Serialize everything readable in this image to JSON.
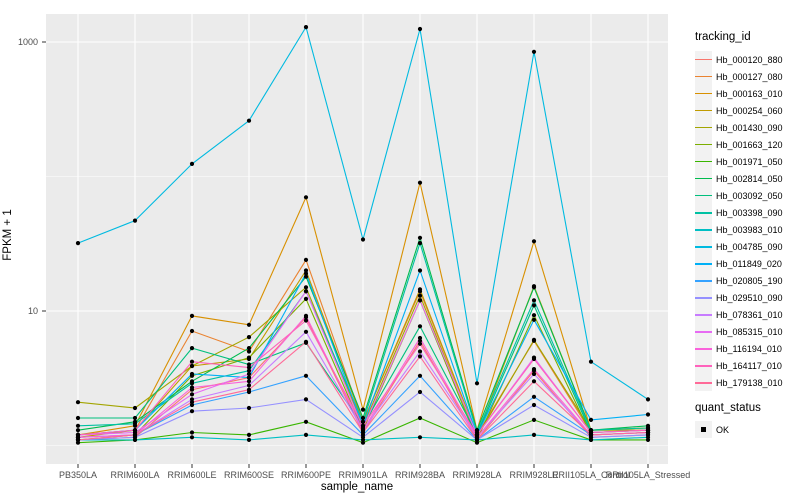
{
  "labels": {
    "y_title": "FPKM + 1",
    "x_title": "sample_name",
    "legend_title": "tracking_id",
    "quant_title": "quant_status",
    "quant_ok": "OK"
  },
  "chart_data": {
    "type": "line",
    "title": "",
    "xlabel": "sample_name",
    "ylabel": "FPKM + 1",
    "y_scale": "log10",
    "y_tick_labels": [
      "1000",
      "10"
    ],
    "y_tick_values": [
      1000,
      10
    ],
    "y_minor_gridlines": [
      100,
      1
    ],
    "ylim": [
      0.73,
      1615
    ],
    "grid": true,
    "legend_position": "right",
    "legend_title": "tracking_id",
    "point_legend": {
      "title": "quant_status",
      "label": "OK"
    },
    "panel_bg": "#EBEBEB",
    "grid_color": "#FFFFFF",
    "point_color": "#000000",
    "categories": [
      "PB350LA",
      "RRIM600LA",
      "RRIM600LE",
      "RRIM600SE",
      "RRIM600PE",
      "RRIM901LA",
      "RRIM928BA",
      "RRIM928LA",
      "RRIM928LE",
      "RRII105LA_Control",
      "RRII105LA_Stressed"
    ],
    "series": [
      {
        "name": "Hb_000120_880",
        "color": "#F8766D",
        "values": [
          1.1,
          1.15,
          2.6,
          3.2,
          9,
          1.25,
          6,
          1.1,
          3.6,
          1.15,
          1.2
        ]
      },
      {
        "name": "Hb_000127_080",
        "color": "#EA8331",
        "values": [
          1.2,
          1.3,
          7.1,
          5,
          24,
          1.5,
          14,
          1.2,
          6,
          1.25,
          1.3
        ]
      },
      {
        "name": "Hb_000163_010",
        "color": "#D89000",
        "values": [
          1.2,
          1.4,
          9.2,
          7.9,
          70,
          1.85,
          90,
          1.3,
          33,
          1.3,
          1.35
        ]
      },
      {
        "name": "Hb_000254_060",
        "color": "#C09B00",
        "values": [
          1.15,
          1.3,
          3.9,
          4.4,
          20,
          1.5,
          14.5,
          1.2,
          15.3,
          1.3,
          1.35
        ]
      },
      {
        "name": "Hb_001430_090",
        "color": "#A3A500",
        "values": [
          2.1,
          1.9,
          3.9,
          6.4,
          15,
          1.4,
          13,
          1.15,
          6.1,
          1.3,
          1.3
        ]
      },
      {
        "name": "Hb_001663_120",
        "color": "#7CAE00",
        "values": [
          1.1,
          1.2,
          3.3,
          4.5,
          12.3,
          1.3,
          12,
          1.1,
          9.3,
          1.2,
          1.25
        ]
      },
      {
        "name": "Hb_001971_050",
        "color": "#39B600",
        "values": [
          1.05,
          1.1,
          1.25,
          1.2,
          1.5,
          1.05,
          1.6,
          1.05,
          1.55,
          1.1,
          1.1
        ]
      },
      {
        "name": "Hb_002814_050",
        "color": "#00BB4E",
        "values": [
          1.3,
          1.5,
          3,
          5.3,
          18,
          1.6,
          35,
          1.3,
          15,
          1.3,
          1.4
        ]
      },
      {
        "name": "Hb_003092_050",
        "color": "#00BF7D",
        "values": [
          1.6,
          1.6,
          5.3,
          4,
          5.8,
          1.4,
          7.7,
          1.2,
          11,
          1.25,
          1.3
        ]
      },
      {
        "name": "Hb_003398_090",
        "color": "#00C1A3",
        "values": [
          1.4,
          1.45,
          2.9,
          3.6,
          14,
          1.5,
          32,
          1.25,
          12,
          1.3,
          1.35
        ]
      },
      {
        "name": "Hb_003983_010",
        "color": "#00BFC4",
        "values": [
          1.1,
          1.1,
          1.15,
          1.1,
          1.2,
          1.1,
          1.15,
          1.1,
          1.2,
          1.1,
          1.15
        ]
      },
      {
        "name": "Hb_004785_090",
        "color": "#00BAE0",
        "values": [
          32,
          47,
          124,
          260,
          1290,
          34,
          1250,
          2.9,
          845,
          4.2,
          2.2
        ]
      },
      {
        "name": "Hb_011849_020",
        "color": "#00B0F6",
        "values": [
          1.2,
          1.3,
          3.4,
          3.2,
          19,
          1.4,
          20,
          1.2,
          8.6,
          1.55,
          1.7
        ]
      },
      {
        "name": "Hb_020805_190",
        "color": "#35A2FF",
        "values": [
          1.15,
          1.2,
          2,
          2.5,
          3.3,
          1.2,
          3.3,
          1.1,
          2.3,
          1.2,
          1.25
        ]
      },
      {
        "name": "Hb_029510_090",
        "color": "#9590FF",
        "values": [
          1.1,
          1.15,
          1.8,
          1.9,
          2.2,
          1.15,
          2.5,
          1.1,
          2,
          1.15,
          1.2
        ]
      },
      {
        "name": "Hb_078361_010",
        "color": "#C77CFF",
        "values": [
          1.15,
          1.2,
          2.2,
          2.8,
          7,
          1.3,
          5,
          1.15,
          3.4,
          1.2,
          1.25
        ]
      },
      {
        "name": "Hb_085315_010",
        "color": "#E76BF3",
        "values": [
          1.2,
          1.25,
          2.4,
          3.4,
          14,
          1.35,
          12,
          1.2,
          4.5,
          1.25,
          1.3
        ]
      },
      {
        "name": "Hb_116194_010",
        "color": "#FA62DB",
        "values": [
          1.15,
          1.2,
          2.7,
          3,
          9.2,
          1.3,
          6.3,
          1.15,
          3.7,
          1.2,
          1.25
        ]
      },
      {
        "name": "Hb_164117_010",
        "color": "#FF62BC",
        "values": [
          1.2,
          1.3,
          4.2,
          3.8,
          8.5,
          1.4,
          5.7,
          1.2,
          4.4,
          1.25,
          1.3
        ]
      },
      {
        "name": "Hb_179138_010",
        "color": "#FF6A98",
        "values": [
          1.1,
          1.2,
          2.1,
          2.6,
          5.9,
          1.25,
          4.6,
          1.1,
          3,
          1.2,
          1.25
        ]
      }
    ]
  }
}
